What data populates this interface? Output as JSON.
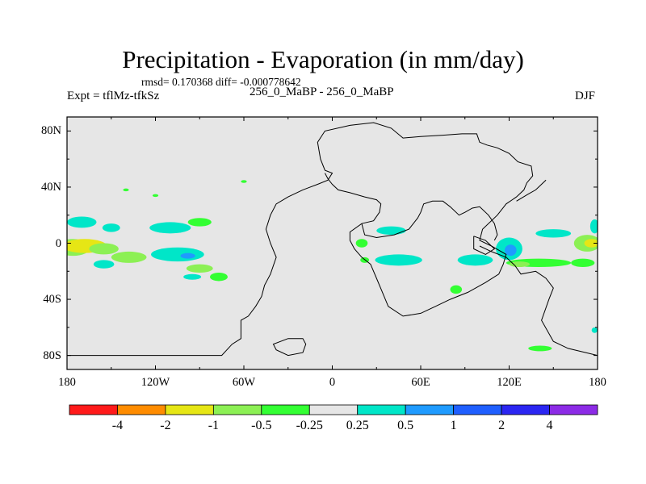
{
  "title": "Precipitation - Evaporation (in mm/day)",
  "stats": "rmsd= 0.170368 diff= -0.000778642",
  "left_label": "Expt = tflMz-tfkSz",
  "center_label": "256_0_MaBP - 256_0_MaBP",
  "right_label": "DJF",
  "map": {
    "lon_range": [
      -180,
      180
    ],
    "lat_range": [
      -90,
      90
    ],
    "x_ticks": [
      {
        "value": -180,
        "label": "180"
      },
      {
        "value": -120,
        "label": "120W"
      },
      {
        "value": -60,
        "label": "60W"
      },
      {
        "value": 0,
        "label": "0"
      },
      {
        "value": 60,
        "label": "60E"
      },
      {
        "value": 120,
        "label": "120E"
      },
      {
        "value": 180,
        "label": "180"
      }
    ],
    "y_ticks": [
      {
        "value": 80,
        "label": "80N"
      },
      {
        "value": 40,
        "label": "40N"
      },
      {
        "value": 0,
        "label": "0"
      },
      {
        "value": -40,
        "label": "40S"
      },
      {
        "value": -80,
        "label": "80S"
      }
    ],
    "background_color": "#e6e6e6",
    "coastline": [
      [
        [
          -180,
          -80
        ],
        [
          -130,
          -80
        ],
        [
          -75,
          -80
        ],
        [
          -68,
          -72
        ],
        [
          -62,
          -68
        ],
        [
          -62,
          -55
        ],
        [
          -57,
          -52
        ],
        [
          -52,
          -45
        ],
        [
          -48,
          -38
        ],
        [
          -46,
          -30
        ],
        [
          -42,
          -22
        ],
        [
          -38,
          -10
        ],
        [
          -42,
          0
        ],
        [
          -45,
          10
        ],
        [
          -42,
          20
        ],
        [
          -38,
          28
        ],
        [
          -30,
          33
        ],
        [
          -20,
          38
        ],
        [
          -10,
          42
        ],
        [
          -3,
          45
        ],
        [
          0,
          50
        ],
        [
          -5,
          52
        ],
        [
          -8,
          60
        ],
        [
          -10,
          72
        ],
        [
          -5,
          80
        ],
        [
          12,
          84
        ],
        [
          28,
          86
        ],
        [
          40,
          82
        ],
        [
          48,
          75
        ],
        [
          60,
          76
        ],
        [
          75,
          77
        ],
        [
          88,
          78
        ],
        [
          98,
          78
        ],
        [
          100,
          72
        ],
        [
          105,
          70
        ],
        [
          112,
          68
        ],
        [
          120,
          64
        ],
        [
          126,
          58
        ],
        [
          135,
          55
        ],
        [
          136,
          48
        ],
        [
          132,
          43
        ],
        [
          130,
          38
        ],
        [
          125,
          33
        ],
        [
          118,
          28
        ],
        [
          112,
          20
        ],
        [
          102,
          10
        ],
        [
          100,
          2
        ],
        [
          108,
          -2
        ],
        [
          118,
          -8
        ],
        [
          116,
          -15
        ],
        [
          113,
          -22
        ],
        [
          104,
          -28
        ],
        [
          92,
          -35
        ],
        [
          80,
          -40
        ],
        [
          70,
          -45
        ],
        [
          60,
          -50
        ],
        [
          48,
          -52
        ],
        [
          38,
          -45
        ],
        [
          34,
          -35
        ],
        [
          30,
          -25
        ],
        [
          26,
          -15
        ],
        [
          20,
          -10
        ],
        [
          15,
          -4
        ],
        [
          12,
          2
        ],
        [
          12,
          8
        ],
        [
          20,
          14
        ],
        [
          28,
          16
        ],
        [
          32,
          22
        ],
        [
          33,
          28
        ],
        [
          30,
          31
        ],
        [
          22,
          33
        ],
        [
          12,
          36
        ],
        [
          4,
          38
        ],
        [
          0,
          42
        ],
        [
          -3,
          46
        ],
        [
          -5,
          50
        ]
      ],
      [
        [
          20,
          14
        ],
        [
          22,
          6
        ],
        [
          30,
          4
        ],
        [
          42,
          6
        ],
        [
          52,
          10
        ],
        [
          58,
          18
        ],
        [
          60,
          22
        ],
        [
          62,
          28
        ],
        [
          68,
          30
        ],
        [
          75,
          30
        ],
        [
          80,
          26
        ],
        [
          86,
          20
        ],
        [
          90,
          22
        ],
        [
          95,
          25
        ],
        [
          100,
          26
        ],
        [
          106,
          20
        ],
        [
          110,
          14
        ],
        [
          112,
          6
        ],
        [
          110,
          2
        ]
      ],
      [
        [
          -30,
          -68
        ],
        [
          -20,
          -68
        ],
        [
          -18,
          -72
        ],
        [
          -20,
          -78
        ],
        [
          -30,
          -80
        ],
        [
          -38,
          -76
        ],
        [
          -40,
          -72
        ],
        [
          -30,
          -68
        ]
      ],
      [
        [
          100,
          -2
        ],
        [
          108,
          -6
        ],
        [
          118,
          -10
        ],
        [
          124,
          -16
        ],
        [
          128,
          -22
        ],
        [
          138,
          -20
        ],
        [
          145,
          -25
        ],
        [
          150,
          -32
        ],
        [
          147,
          -40
        ],
        [
          142,
          -55
        ],
        [
          150,
          -70
        ],
        [
          160,
          -75
        ],
        [
          172,
          -78
        ],
        [
          180,
          -80
        ]
      ],
      [
        [
          125,
          30
        ],
        [
          133,
          35
        ],
        [
          138,
          38
        ],
        [
          142,
          42
        ],
        [
          145,
          45
        ]
      ],
      [
        [
          96,
          5
        ],
        [
          104,
          2
        ],
        [
          110,
          -4
        ],
        [
          104,
          -8
        ],
        [
          96,
          -4
        ],
        [
          96,
          5
        ]
      ]
    ],
    "anomalies": [
      {
        "lon": -176,
        "lat": -3,
        "rx": 12,
        "ry": 6,
        "color": "#8cf054"
      },
      {
        "lon": -168,
        "lat": -2,
        "rx": 15,
        "ry": 5,
        "color": "#e6e615"
      },
      {
        "lon": -155,
        "lat": -4,
        "rx": 10,
        "ry": 4,
        "color": "#8cf054"
      },
      {
        "lon": -138,
        "lat": -10,
        "rx": 12,
        "ry": 4,
        "color": "#8cf054"
      },
      {
        "lon": -170,
        "lat": 15,
        "rx": 10,
        "ry": 4,
        "color": "#00e6c8"
      },
      {
        "lon": -150,
        "lat": 11,
        "rx": 6,
        "ry": 3,
        "color": "#00e6c8"
      },
      {
        "lon": -110,
        "lat": 11,
        "rx": 14,
        "ry": 4,
        "color": "#00e6c8"
      },
      {
        "lon": -90,
        "lat": 15,
        "rx": 8,
        "ry": 3,
        "color": "#33ff33"
      },
      {
        "lon": -105,
        "lat": -8,
        "rx": 18,
        "ry": 5,
        "color": "#00e6c8"
      },
      {
        "lon": -98,
        "lat": -9,
        "rx": 5,
        "ry": 2,
        "color": "#1f9bff"
      },
      {
        "lon": -90,
        "lat": -18,
        "rx": 9,
        "ry": 3,
        "color": "#8cf054"
      },
      {
        "lon": -155,
        "lat": -15,
        "rx": 7,
        "ry": 3,
        "color": "#00e6c8"
      },
      {
        "lon": -95,
        "lat": -24,
        "rx": 6,
        "ry": 2,
        "color": "#00e6c8"
      },
      {
        "lon": -77,
        "lat": -24,
        "rx": 6,
        "ry": 3,
        "color": "#33ff33"
      },
      {
        "lon": 20,
        "lat": 0,
        "rx": 4,
        "ry": 3,
        "color": "#33ff33"
      },
      {
        "lon": 22,
        "lat": -12,
        "rx": 3,
        "ry": 2,
        "color": "#33ff33"
      },
      {
        "lon": 45,
        "lat": -12,
        "rx": 16,
        "ry": 4,
        "color": "#00e6c8"
      },
      {
        "lon": 40,
        "lat": 9,
        "rx": 10,
        "ry": 3,
        "color": "#00e6c8"
      },
      {
        "lon": 97,
        "lat": -12,
        "rx": 12,
        "ry": 4,
        "color": "#00e6c8"
      },
      {
        "lon": 120,
        "lat": -4,
        "rx": 9,
        "ry": 8,
        "color": "#00e6c8"
      },
      {
        "lon": 121,
        "lat": -5,
        "rx": 4,
        "ry": 4,
        "color": "#1f9bff"
      },
      {
        "lon": 140,
        "lat": -14,
        "rx": 22,
        "ry": 3,
        "color": "#33ff33"
      },
      {
        "lon": 127,
        "lat": -15,
        "rx": 7,
        "ry": 2,
        "color": "#8cf054"
      },
      {
        "lon": 170,
        "lat": -14,
        "rx": 8,
        "ry": 3,
        "color": "#33ff33"
      },
      {
        "lon": 150,
        "lat": 7,
        "rx": 12,
        "ry": 3,
        "color": "#00e6c8"
      },
      {
        "lon": 173,
        "lat": 0,
        "rx": 9,
        "ry": 6,
        "color": "#8cf054"
      },
      {
        "lon": 176,
        "lat": 0,
        "rx": 5,
        "ry": 3,
        "color": "#e6e615"
      },
      {
        "lon": 178,
        "lat": 12,
        "rx": 3,
        "ry": 5,
        "color": "#00e6c8"
      },
      {
        "lon": 84,
        "lat": -33,
        "rx": 4,
        "ry": 3,
        "color": "#33ff33"
      },
      {
        "lon": 141,
        "lat": -75,
        "rx": 8,
        "ry": 2,
        "color": "#33ff33"
      },
      {
        "lon": 178,
        "lat": -62,
        "rx": 2,
        "ry": 2,
        "color": "#00e6c8"
      },
      {
        "lon": -60,
        "lat": 44,
        "rx": 2,
        "ry": 1,
        "color": "#33ff33"
      },
      {
        "lon": -140,
        "lat": 38,
        "rx": 2,
        "ry": 1,
        "color": "#33ff33"
      },
      {
        "lon": -120,
        "lat": 34,
        "rx": 2,
        "ry": 1,
        "color": "#33ff33"
      }
    ]
  },
  "colorbar": {
    "colors": [
      "#ff1a1a",
      "#ff8c00",
      "#e6e615",
      "#8cf054",
      "#33ff33",
      "#e6e6e6",
      "#00e6c8",
      "#1f9bff",
      "#1f5fff",
      "#2b26f2",
      "#8c2be6"
    ],
    "labels": [
      "-4",
      "-2",
      "-1",
      "-0.5",
      "-0.25",
      "0.25",
      "0.5",
      "1",
      "2",
      "4"
    ]
  }
}
